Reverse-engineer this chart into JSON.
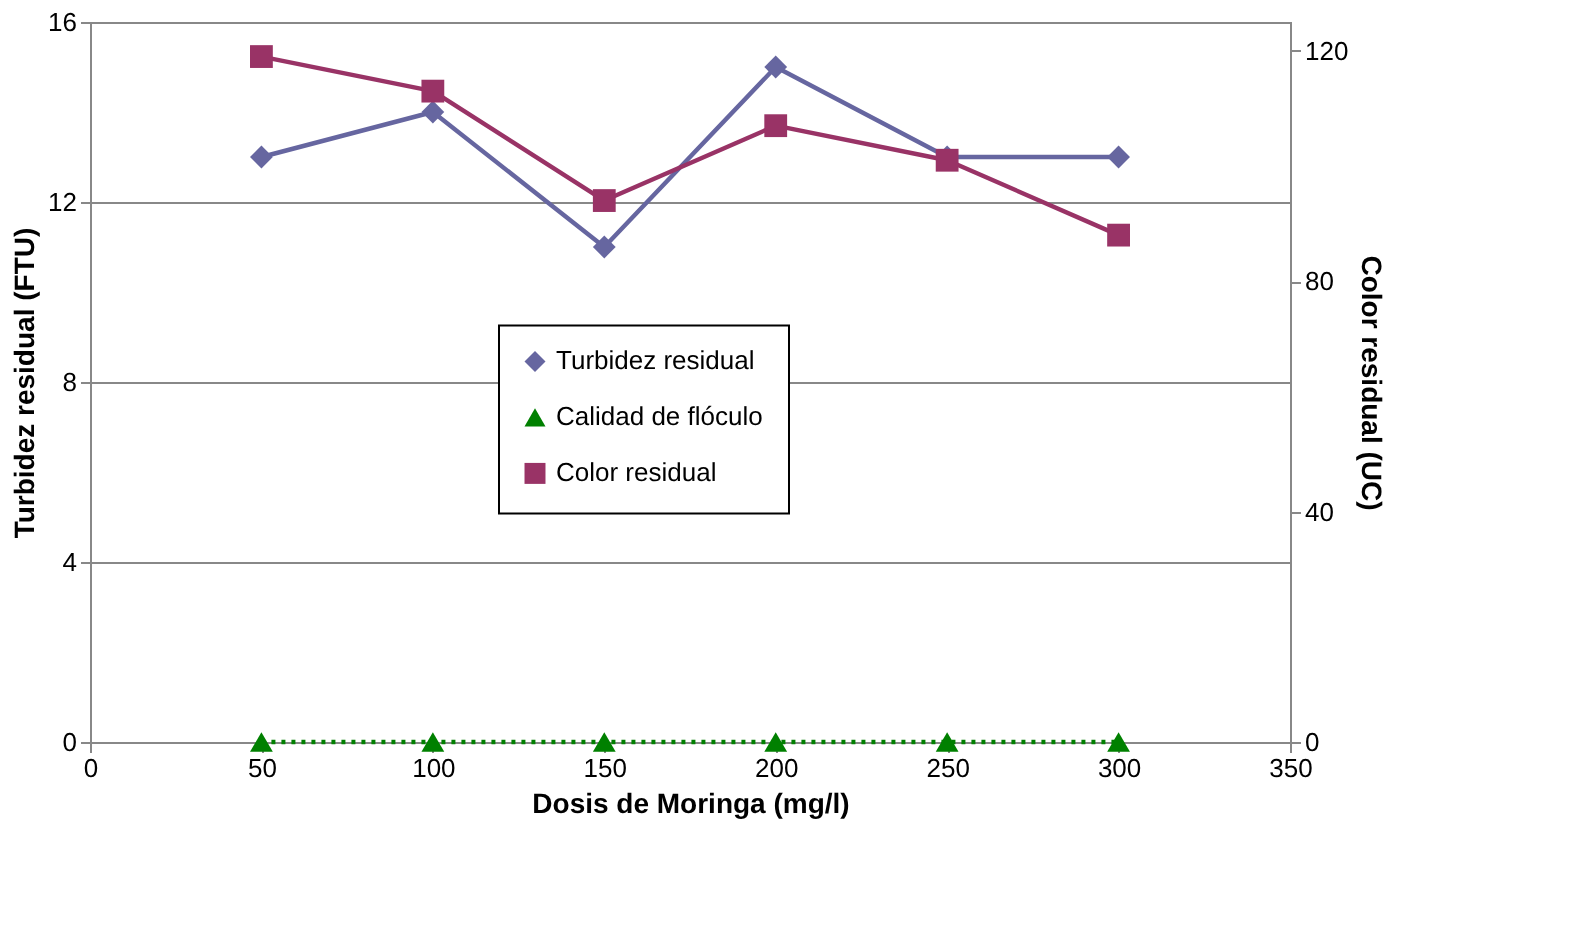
{
  "chart_data": {
    "type": "line",
    "xlabel": "Dosis de Moringa (mg/l)",
    "ylabel": "Turbidez residual (FTU)",
    "y2label": "Color residual (UC)",
    "x": [
      50,
      100,
      150,
      200,
      250,
      300
    ],
    "series": [
      {
        "name": "Turbidez residual",
        "color": "#6666a0",
        "values": [
          13,
          14,
          11,
          15,
          13,
          13
        ],
        "marker": "diamond",
        "line_style": "solid"
      },
      {
        "name": "Calidad de flóculo",
        "color": "#008000",
        "values": [
          0,
          0,
          0,
          0,
          0,
          0
        ],
        "marker": "triangle",
        "line_style": "dotted"
      },
      {
        "name": "Color residual",
        "color": "#993366",
        "values": [
          119,
          113,
          94,
          107,
          101,
          88
        ],
        "marker": "square",
        "line_style": "solid",
        "axis": "y2"
      }
    ],
    "xlim": [
      0,
      350
    ],
    "xticks": [
      0,
      50,
      100,
      150,
      200,
      250,
      300,
      350
    ],
    "ylim": [
      0,
      16
    ],
    "yticks": [
      0,
      4,
      8,
      12,
      16
    ],
    "y2lim": [
      0,
      125
    ],
    "y2ticks": [
      0,
      40,
      80,
      120
    ],
    "grid": "y",
    "legend": "center"
  }
}
